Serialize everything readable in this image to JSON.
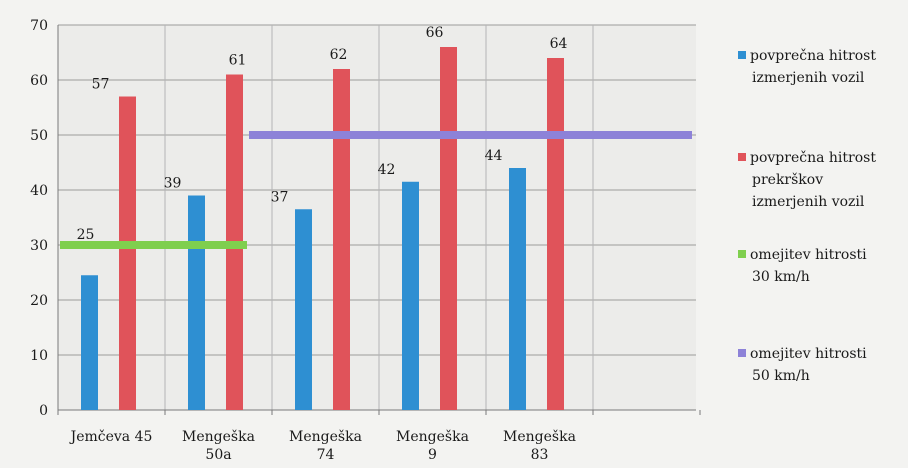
{
  "chart_data": {
    "type": "bar",
    "categories": [
      [
        "Jemčeva 45"
      ],
      [
        "Mengeška",
        "50a"
      ],
      [
        "Mengeška",
        "74"
      ],
      [
        "Mengeška",
        "9"
      ],
      [
        "Mengeška",
        "83"
      ]
    ],
    "series": [
      {
        "name": [
          "povprečna hitrost",
          "izmerjenih vozil"
        ],
        "color": "#2e8fd2",
        "values": [
          24.5,
          39,
          36.5,
          41.5,
          44
        ],
        "labels": [
          "25",
          "39",
          "37",
          "42",
          "44"
        ]
      },
      {
        "name": [
          "povprečna hitrost",
          "prekrškov",
          "izmerjenih vozil"
        ],
        "color": "#e0535a",
        "values": [
          57,
          61,
          62,
          66,
          64
        ],
        "labels": [
          "57",
          "61",
          "62",
          "66",
          "64"
        ]
      }
    ],
    "reference_lines": [
      {
        "name": [
          "omejitev hitrosti",
          "30 km/h"
        ],
        "color": "#7fcf4e",
        "value": 30,
        "from_category": 0,
        "to_category": 1
      },
      {
        "name": [
          "omejitev hitrosti",
          "50 km/h"
        ],
        "color": "#8d82d8",
        "value": 50,
        "from_category": 2,
        "to_category": 6
      }
    ],
    "y_ticks": [
      "0",
      "10",
      "20",
      "30",
      "40",
      "50",
      "60",
      "70"
    ],
    "ylim": [
      0,
      70
    ],
    "grid": true,
    "legend_position": "right",
    "title": "",
    "xlabel": "",
    "ylabel": ""
  }
}
